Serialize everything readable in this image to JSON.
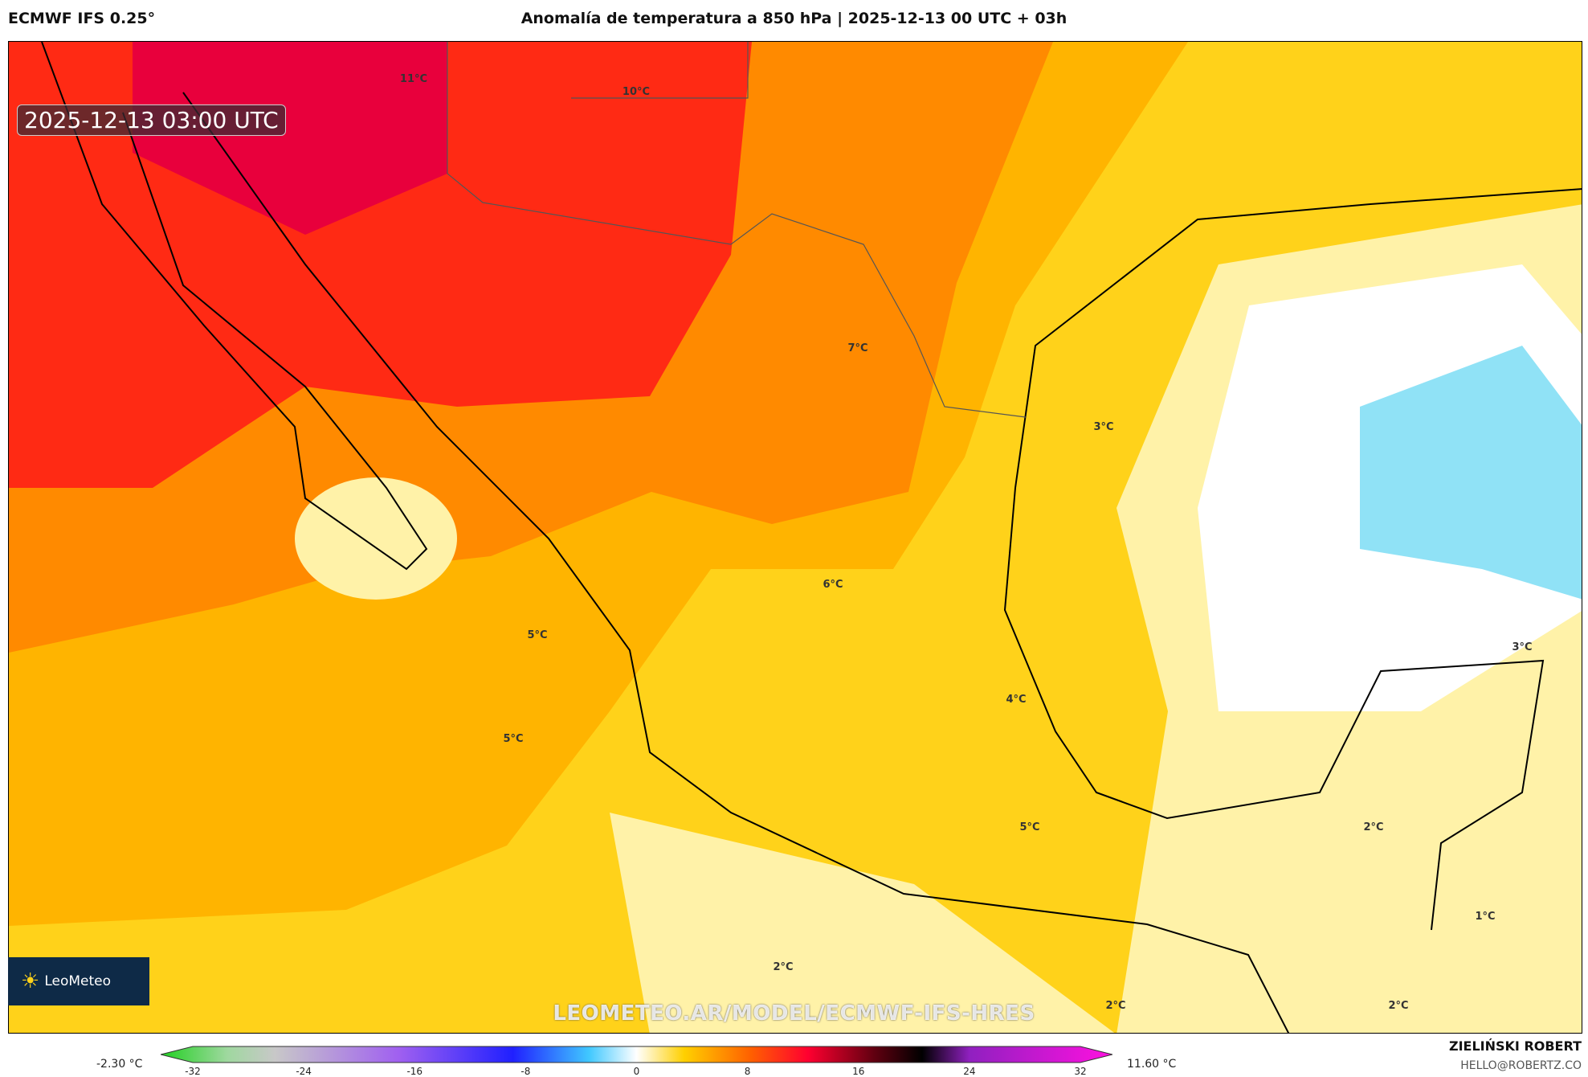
{
  "header": {
    "model": "ECMWF IFS 0.25°",
    "title": "Anomalía de temperatura a 850 hPa | 2025-12-13 00 UTC + 03h"
  },
  "map": {
    "valid_time": "2025-12-13 03:00 UTC",
    "contour_labels": [
      "11°C",
      "10°C",
      "7°C",
      "3°C",
      "6°C",
      "5°C",
      "5°C",
      "4°C",
      "3°C",
      "5°C",
      "2°C",
      "1°C",
      "2°C",
      "2°C",
      "2°C"
    ],
    "colors": {
      "crimson": "#e8003c",
      "red": "#ff2a14",
      "orange": "#ff8a00",
      "gold": "#ffd21a",
      "pale": "#fff2a8",
      "white": "#ffffff",
      "light_blue": "#90e2f6"
    },
    "watermark": "LEOMETEO.AR/MODEL/ECMWF-IFS-HRES",
    "logo": "LeoMeteo"
  },
  "colorbar": {
    "min_label": "-2.30 °C",
    "max_label": "11.60 °C",
    "ticks": [
      "-32",
      "-24",
      "-16",
      "-8",
      "0",
      "8",
      "16",
      "24",
      "32"
    ],
    "range": [
      -32,
      32
    ]
  },
  "footer": {
    "author": "ZIELIŃSKI ROBERT",
    "email": "HELLO@ROBERTZ.CO"
  }
}
